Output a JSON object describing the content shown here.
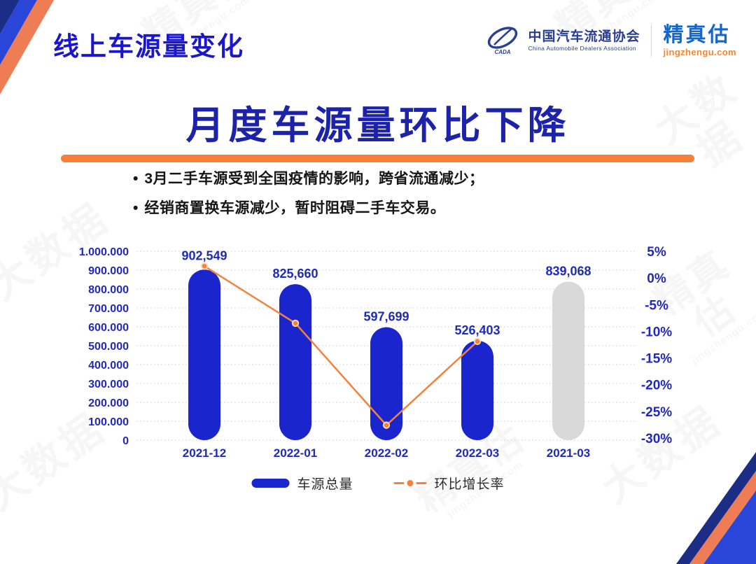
{
  "header": {
    "title": "线上车源量变化"
  },
  "logos": {
    "cada_name": "中国汽车流通协会",
    "cada_sub": "China Automobile Dealers Association",
    "cada_mark": "CADA",
    "jzg_name": "精真估",
    "jzg_domain": "jingzhengu.com"
  },
  "main_title": "月度车源量环比下降",
  "bullets": [
    "3月二手车源受到全国疫情的影响，跨省流通减少；",
    "经销商置换车源减少，暂时阻碍二手车交易。"
  ],
  "chart_data": {
    "type": "bar+line combo",
    "categories": [
      "2021-12",
      "2022-01",
      "2022-02",
      "2022-03",
      "2021-03"
    ],
    "series": [
      {
        "name": "车源总量",
        "type": "bar",
        "values": [
          902549,
          825660,
          597699,
          526403,
          839068
        ],
        "labels": [
          "902,549",
          "825,660",
          "597,699",
          "526,403",
          "839,068"
        ],
        "colors": [
          "#1a25cd",
          "#1a25cd",
          "#1a25cd",
          "#1a25cd",
          "#d9d9d9"
        ]
      },
      {
        "name": "环比增长率",
        "type": "line",
        "values_pct": [
          2.2,
          -8.5,
          -27.6,
          -11.9
        ],
        "color": "#f5823c",
        "marker_ring": "#ffd9b8"
      }
    ],
    "left_axis": {
      "ticks": [
        "1.000.000",
        "900.000",
        "800.000",
        "700.000",
        "600.000",
        "500.000",
        "400.000",
        "300.000",
        "200.000",
        "100.000",
        "0"
      ],
      "min": 0,
      "max": 1000000
    },
    "right_axis": {
      "ticks": [
        "5%",
        "0%",
        "-5%",
        "-10%",
        "-15%",
        "-20%",
        "-25%",
        "-30%"
      ],
      "min": -30,
      "max": 5
    },
    "grid": "dotted horizontal",
    "legend_position": "bottom"
  },
  "legend": {
    "bar_label": "车源总量",
    "line_label": "环比增长率"
  },
  "watermark": {
    "brand": "精真估",
    "domain": "jingzhengu.com",
    "bigdata": "大数据"
  },
  "colors": {
    "bar_blue": "#1a25cd",
    "bar_gray": "#d9d9d9",
    "line_orange": "#f5823c",
    "divider_orange": "#f87f35",
    "title_blue": "#1d23a9",
    "axis_blue": "#2028c0"
  }
}
